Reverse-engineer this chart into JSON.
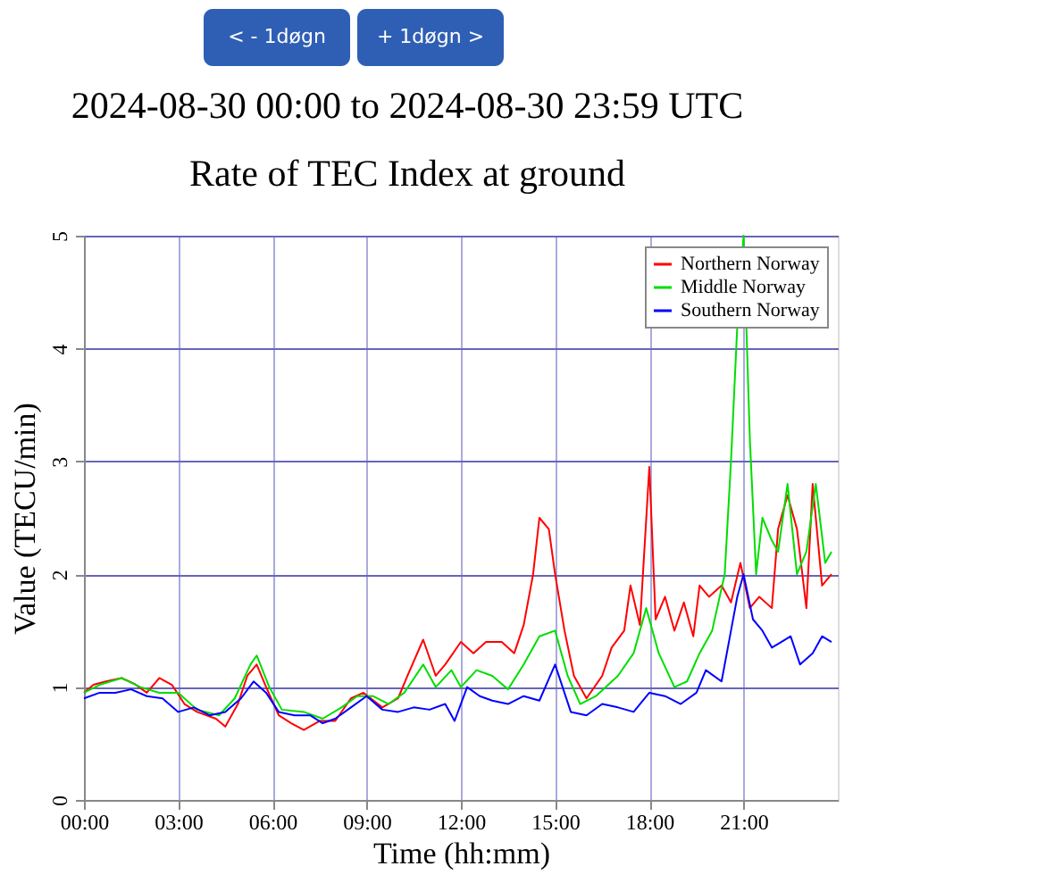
{
  "chart_data": {
    "type": "line",
    "title": "2024-08-30 00:00 to 2024-08-30 23:59 UTC",
    "subtitle": "Rate of TEC Index at ground",
    "xlabel": "Time (hh:mm)",
    "ylabel": "Value (TECU/min)",
    "annotations": [
      "< - 1døgn",
      "+ 1døgn >"
    ],
    "xlim": [
      0,
      24
    ],
    "xticks": [
      {
        "value": 0,
        "label": "00:00"
      },
      {
        "value": 3,
        "label": "03:00"
      },
      {
        "value": 6,
        "label": "06:00"
      },
      {
        "value": 9,
        "label": "09:00"
      },
      {
        "value": 12,
        "label": "12:00"
      },
      {
        "value": 15,
        "label": "15:00"
      },
      {
        "value": 18,
        "label": "18:00"
      },
      {
        "value": 21,
        "label": "21:00"
      }
    ],
    "ylim": [
      0,
      5
    ],
    "yticks": [
      0,
      1,
      2,
      3,
      4,
      5
    ],
    "grid": true,
    "legend": "top right",
    "line_style": "solid",
    "series": [
      {
        "name": "Northern Norway",
        "color": "#ff0000",
        "x": [
          0,
          0.3,
          0.7,
          1.2,
          1.6,
          2.0,
          2.4,
          2.8,
          3.2,
          3.6,
          4.2,
          4.5,
          4.9,
          5.2,
          5.5,
          5.8,
          6.2,
          6.6,
          7.0,
          7.5,
          8.0,
          8.5,
          8.9,
          9.5,
          10.0,
          10.3,
          10.8,
          11.2,
          11.5,
          12.0,
          12.4,
          12.8,
          13.3,
          13.7,
          14.0,
          14.3,
          14.5,
          14.8,
          15.0,
          15.3,
          15.6,
          16.0,
          16.5,
          16.8,
          17.2,
          17.4,
          17.7,
          18.0,
          18.2,
          18.5,
          18.8,
          19.1,
          19.4,
          19.6,
          19.9,
          20.3,
          20.6,
          20.9,
          21.2,
          21.5,
          21.9,
          22.1,
          22.4,
          22.7,
          23.0,
          23.2,
          23.5,
          23.8
        ],
        "values": [
          0.95,
          1.02,
          1.05,
          1.08,
          1.03,
          0.95,
          1.08,
          1.02,
          0.85,
          0.78,
          0.72,
          0.65,
          0.85,
          1.1,
          1.2,
          1.0,
          0.75,
          0.68,
          0.62,
          0.7,
          0.7,
          0.9,
          0.95,
          0.82,
          0.9,
          1.1,
          1.42,
          1.1,
          1.2,
          1.4,
          1.3,
          1.4,
          1.4,
          1.3,
          1.55,
          2.0,
          2.5,
          2.4,
          2.0,
          1.5,
          1.1,
          0.9,
          1.1,
          1.35,
          1.5,
          1.9,
          1.55,
          2.95,
          1.6,
          1.8,
          1.5,
          1.75,
          1.45,
          1.9,
          1.8,
          1.9,
          1.75,
          2.1,
          1.7,
          1.8,
          1.7,
          2.4,
          2.7,
          2.4,
          1.7,
          2.8,
          1.9,
          2.0
        ]
      },
      {
        "name": "Middle Norway",
        "color": "#00dd00",
        "x": [
          0,
          0.5,
          1.2,
          1.8,
          2.4,
          3.0,
          3.6,
          4.3,
          4.8,
          5.3,
          5.5,
          5.9,
          6.3,
          7.0,
          7.6,
          8.2,
          8.7,
          9.2,
          9.7,
          10.2,
          10.8,
          11.2,
          11.7,
          12.0,
          12.5,
          13.0,
          13.5,
          14.0,
          14.5,
          15.0,
          15.4,
          15.8,
          16.3,
          17.0,
          17.5,
          17.9,
          18.3,
          18.8,
          19.2,
          19.6,
          20.0,
          20.4,
          20.6,
          20.8,
          21.0,
          21.2,
          21.4,
          21.6,
          21.9,
          22.1,
          22.4,
          22.7,
          23.0,
          23.3,
          23.6,
          23.8
        ],
        "values": [
          0.95,
          1.02,
          1.08,
          1.0,
          0.95,
          0.95,
          0.8,
          0.75,
          0.9,
          1.2,
          1.28,
          1.0,
          0.8,
          0.78,
          0.72,
          0.82,
          0.92,
          0.92,
          0.85,
          0.95,
          1.2,
          1.0,
          1.15,
          1.0,
          1.15,
          1.1,
          0.98,
          1.2,
          1.45,
          1.5,
          1.1,
          0.85,
          0.92,
          1.1,
          1.3,
          1.7,
          1.3,
          1.0,
          1.05,
          1.3,
          1.5,
          2.0,
          3.0,
          4.2,
          5.0,
          3.2,
          2.0,
          2.5,
          2.3,
          2.2,
          2.8,
          2.0,
          2.2,
          2.8,
          2.1,
          2.2
        ]
      },
      {
        "name": "Southern Norway",
        "color": "#0000ff",
        "x": [
          0,
          0.5,
          1.0,
          1.5,
          2.0,
          2.5,
          3.0,
          3.5,
          4.0,
          4.5,
          5.0,
          5.4,
          5.8,
          6.2,
          6.7,
          7.2,
          7.6,
          8.0,
          8.5,
          9.0,
          9.5,
          10.0,
          10.5,
          11.0,
          11.5,
          11.8,
          12.2,
          12.6,
          13.0,
          13.5,
          14.0,
          14.5,
          15.0,
          15.5,
          16.0,
          16.5,
          17.0,
          17.5,
          18.0,
          18.5,
          19.0,
          19.5,
          19.8,
          20.3,
          20.6,
          20.8,
          21.0,
          21.3,
          21.6,
          21.9,
          22.2,
          22.5,
          22.8,
          23.2,
          23.5,
          23.8
        ],
        "values": [
          0.9,
          0.95,
          0.95,
          0.98,
          0.92,
          0.9,
          0.78,
          0.82,
          0.75,
          0.78,
          0.9,
          1.05,
          0.95,
          0.78,
          0.75,
          0.75,
          0.68,
          0.72,
          0.82,
          0.92,
          0.8,
          0.78,
          0.82,
          0.8,
          0.85,
          0.7,
          1.0,
          0.92,
          0.88,
          0.85,
          0.92,
          0.88,
          1.2,
          0.78,
          0.75,
          0.85,
          0.82,
          0.78,
          0.95,
          0.92,
          0.85,
          0.95,
          1.15,
          1.05,
          1.5,
          1.8,
          2.0,
          1.6,
          1.5,
          1.35,
          1.4,
          1.45,
          1.2,
          1.3,
          1.45,
          1.4
        ]
      }
    ]
  }
}
